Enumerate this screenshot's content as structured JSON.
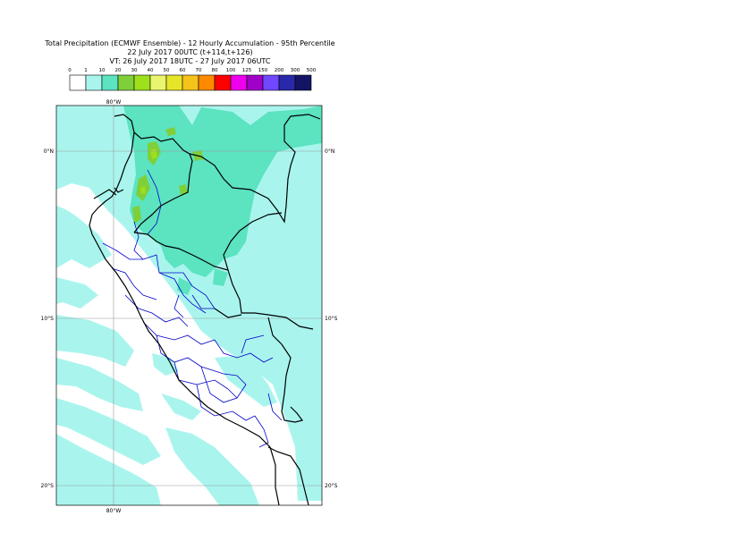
{
  "title": {
    "line1": "Total Precipitation (ECMWF Ensemble) - 12 Hourly Accumulation - 95th Percentile",
    "line2": "22 July 2017 00UTC (t+114,t+126)",
    "line3": "VT: 26 July 2017 18UTC - 27 July 2017 06UTC"
  },
  "legend": {
    "ticks": [
      "0",
      "1",
      "10",
      "20",
      "30",
      "40",
      "50",
      "60",
      "70",
      "80",
      "100",
      "125",
      "150",
      "200",
      "300",
      "500"
    ],
    "colors": [
      "#ffffff",
      "#a9f5ee",
      "#5ce3c0",
      "#7fcf3a",
      "#9ee01c",
      "#e9f56e",
      "#e6e628",
      "#f5c31a",
      "#ff8a00",
      "#ff0000",
      "#ee00ee",
      "#a000c8",
      "#7048ff",
      "#2828aa",
      "#141464"
    ]
  },
  "map": {
    "lon_labels": {
      "top": "80°W",
      "bottom": "80°W"
    },
    "lat_labels": [
      "0°N",
      "10°S",
      "20°S"
    ],
    "colors": {
      "sea_bg": "#ffffff",
      "light_precip": "#a9f5ee",
      "medium_precip": "#5ce3c0",
      "heavy_precip": "#7fcf3a",
      "very_heavy_precip": "#9ee01c",
      "coast": "#000000",
      "admin_border": "#0000cc",
      "graticule": "#999999"
    }
  }
}
